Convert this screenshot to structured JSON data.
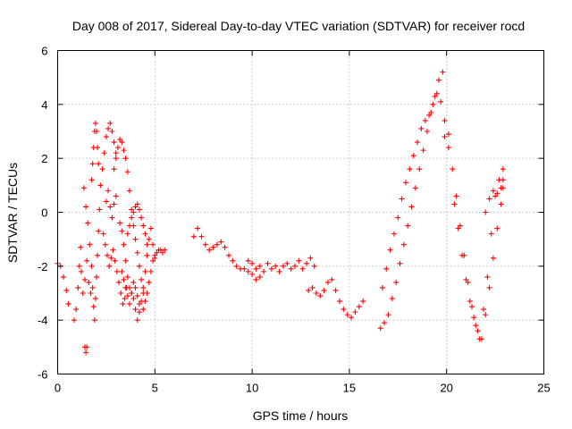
{
  "chart_data": {
    "type": "scatter",
    "title": "Day 008 of 2017, Sidereal Day-to-day VTEC variation (SDTVAR) for receiver rocd",
    "xlabel": "GPS time / hours",
    "ylabel": "SDTVAR / TECUs",
    "xlim": [
      0,
      25
    ],
    "ylim": [
      -6,
      6
    ],
    "xticks": [
      0,
      5,
      10,
      15,
      20,
      25
    ],
    "yticks": [
      -6,
      -4,
      -2,
      0,
      2,
      4,
      6
    ],
    "xtick_labels": [
      "0",
      "5",
      "10",
      "15",
      "20",
      "25"
    ],
    "ytick_labels": [
      "-6",
      "-4",
      "-2",
      "0",
      "2",
      "4",
      "6"
    ],
    "grid": true,
    "marker": "plus",
    "color": "#ff0000",
    "series": [
      {
        "name": "SDTVAR",
        "tracks": [
          {
            "x": [
              0.0,
              0.15,
              0.3,
              0.45,
              0.55
            ],
            "y": [
              -1.9,
              -2.0,
              -2.4,
              -2.9,
              -3.4
            ]
          },
          {
            "x": [
              0.85,
              0.95,
              1.05,
              1.12,
              1.18,
              1.22,
              1.3,
              1.4,
              1.5,
              1.6,
              1.7
            ],
            "y": [
              -4.0,
              -3.6,
              -2.8,
              -2.0,
              -1.3,
              -2.2,
              -3.0,
              -2.5,
              -1.8,
              -2.6,
              -3.0
            ]
          },
          {
            "x": [
              1.4,
              1.45,
              1.5
            ],
            "y": [
              -5.0,
              -5.2,
              -5.0
            ]
          },
          {
            "x": [
              1.35,
              1.45,
              1.55,
              1.65,
              1.75,
              1.8,
              1.85,
              1.9,
              1.95,
              2.0,
              2.05,
              2.1,
              2.15
            ],
            "y": [
              0.9,
              0.2,
              -0.4,
              -1.2,
              -2.0,
              -2.8,
              -3.5,
              -4.0,
              -3.2,
              -2.4,
              -1.6,
              -0.7,
              0.1
            ]
          },
          {
            "x": [
              1.75,
              1.8,
              1.85,
              1.9,
              1.95,
              2.0,
              2.05,
              2.1
            ],
            "y": [
              1.2,
              1.8,
              2.4,
              3.0,
              3.3,
              3.0,
              2.4,
              1.8
            ]
          },
          {
            "x": [
              2.2,
              2.3,
              2.4,
              2.5,
              2.6,
              2.7,
              2.8,
              2.9,
              3.0
            ],
            "y": [
              1.0,
              1.6,
              2.2,
              2.8,
              3.1,
              3.3,
              3.0,
              2.6,
              2.2
            ]
          },
          {
            "x": [
              2.35,
              2.45,
              2.55,
              2.65,
              2.75,
              2.85,
              2.95,
              3.05,
              3.15,
              3.25,
              3.35,
              3.45,
              3.55
            ],
            "y": [
              -0.8,
              -1.2,
              -1.6,
              -2.0,
              -1.7,
              -1.4,
              -1.8,
              -2.2,
              -2.6,
              -3.0,
              -3.4,
              -3.2,
              -2.8
            ]
          },
          {
            "x": [
              2.5,
              2.6,
              2.7,
              2.8,
              2.9,
              3.0
            ],
            "y": [
              0.4,
              0.8,
              0.2,
              -0.2,
              0.3,
              0.6
            ]
          },
          {
            "x": [
              2.9,
              3.0,
              3.1,
              3.2,
              3.3,
              3.4,
              3.5,
              3.6,
              3.7,
              3.8,
              3.9,
              4.0,
              4.1,
              4.2,
              4.3,
              4.4
            ],
            "y": [
              1.6,
              2.0,
              2.4,
              2.7,
              2.6,
              2.3,
              2.0,
              1.5,
              0.8,
              0.1,
              -0.5,
              -1.0,
              -1.5,
              -2.0,
              -2.5,
              -3.0
            ]
          },
          {
            "x": [
              3.2,
              3.3,
              3.4,
              3.5,
              3.6,
              3.7,
              3.8,
              3.9,
              4.0,
              4.1,
              4.2,
              4.3,
              4.4,
              4.5,
              4.6,
              4.7,
              4.8,
              4.9,
              5.0
            ],
            "y": [
              -0.4,
              -0.7,
              -1.2,
              -1.8,
              -2.4,
              -2.8,
              -3.0,
              -3.2,
              -3.6,
              -4.0,
              -3.7,
              -3.3,
              -2.8,
              -2.2,
              -1.6,
              -1.0,
              -0.6,
              -1.2,
              -1.7
            ]
          },
          {
            "x": [
              3.3,
              3.4,
              3.5,
              3.6,
              3.7,
              3.8,
              3.9,
              4.0,
              4.1,
              4.2
            ],
            "y": [
              -2.2,
              -2.5,
              -2.8,
              -3.1,
              -3.4,
              -3.0,
              -2.6,
              -2.8,
              -3.1,
              -3.4
            ]
          },
          {
            "x": [
              3.6,
              3.7,
              3.8,
              3.9,
              4.0,
              4.1,
              4.2,
              4.3,
              4.4,
              4.5,
              4.6
            ],
            "y": [
              -0.8,
              -0.5,
              -0.2,
              0.0,
              0.2,
              0.3,
              0.1,
              -0.2,
              -0.5,
              -0.8,
              -1.2
            ]
          },
          {
            "x": [
              4.4,
              4.5,
              4.6,
              4.7,
              4.8,
              4.9,
              5.0,
              5.1,
              5.2,
              5.3,
              5.4,
              5.5
            ],
            "y": [
              -3.6,
              -3.3,
              -3.0,
              -2.6,
              -2.2,
              -1.8,
              -1.6,
              -1.5,
              -1.4,
              -1.4,
              -1.5,
              -1.4
            ]
          },
          {
            "x": [
              7.0,
              7.2,
              7.4,
              7.6,
              7.8,
              8.0,
              8.2,
              8.4,
              8.6,
              8.8,
              9.0,
              9.2,
              9.4,
              9.6,
              9.8,
              10.0,
              10.2,
              10.4
            ],
            "y": [
              -0.9,
              -0.6,
              -0.9,
              -1.2,
              -1.4,
              -1.3,
              -1.2,
              -1.1,
              -1.3,
              -1.6,
              -1.8,
              -2.0,
              -2.1,
              -2.1,
              -2.2,
              -2.3,
              -2.5,
              -2.4
            ]
          },
          {
            "x": [
              9.8,
              10.0,
              10.2,
              10.4,
              10.6,
              10.8,
              11.0,
              11.2,
              11.4,
              11.6,
              11.8,
              12.0,
              12.2,
              12.4,
              12.6,
              12.8,
              13.0,
              13.2
            ],
            "y": [
              -1.8,
              -1.9,
              -2.1,
              -2.0,
              -2.2,
              -1.9,
              -2.1,
              -2.0,
              -2.2,
              -2.0,
              -1.9,
              -2.1,
              -2.0,
              -1.8,
              -2.1,
              -1.9,
              -1.7,
              -2.0
            ]
          },
          {
            "x": [
              12.9,
              13.1,
              13.3,
              13.5,
              13.7,
              13.9,
              14.1,
              14.3,
              14.5,
              14.7,
              14.9,
              15.1,
              15.3,
              15.5,
              15.7
            ],
            "y": [
              -2.9,
              -2.8,
              -3.0,
              -3.1,
              -2.9,
              -2.6,
              -2.5,
              -2.9,
              -3.3,
              -3.6,
              -3.8,
              -3.9,
              -3.7,
              -3.5,
              -3.3
            ]
          },
          {
            "x": [
              16.6,
              16.8,
              17.0,
              17.2,
              17.4,
              17.6,
              17.8,
              18.0,
              18.2,
              18.4,
              18.6,
              18.8,
              19.0,
              19.2,
              19.4,
              19.6,
              19.8
            ],
            "y": [
              -4.3,
              -4.1,
              -3.8,
              -3.2,
              -2.6,
              -1.9,
              -1.2,
              -0.5,
              0.2,
              0.9,
              1.6,
              2.3,
              3.0,
              3.7,
              4.3,
              4.9,
              5.2
            ]
          },
          {
            "x": [
              16.7,
              16.9,
              17.1,
              17.3,
              17.5,
              17.7,
              17.9,
              18.1,
              18.3,
              18.5,
              18.7,
              18.9,
              19.1,
              19.3,
              19.5,
              19.7,
              19.9,
              20.1
            ],
            "y": [
              -2.8,
              -2.1,
              -1.4,
              -0.8,
              -0.2,
              0.5,
              1.1,
              1.6,
              2.1,
              2.6,
              3.1,
              3.4,
              3.6,
              4.0,
              4.4,
              4.1,
              3.4,
              2.9
            ]
          },
          {
            "x": [
              19.9,
              20.1,
              20.3,
              20.5,
              20.7,
              20.9,
              21.1,
              21.3,
              21.5,
              21.7,
              21.9,
              22.1,
              22.3,
              22.5,
              22.7,
              22.9
            ],
            "y": [
              2.8,
              2.4,
              1.6,
              0.6,
              -0.5,
              -1.6,
              -2.6,
              -3.5,
              -4.2,
              -4.7,
              -3.6,
              -2.4,
              -0.8,
              0.6,
              1.2,
              1.6
            ]
          },
          {
            "x": [
              20.4,
              20.6,
              20.8,
              21.0,
              21.2,
              21.4,
              21.6,
              21.8,
              22.0,
              22.2,
              22.4,
              22.6,
              22.8,
              22.9
            ],
            "y": [
              0.3,
              -0.6,
              -1.6,
              -2.5,
              -3.3,
              -3.9,
              -4.4,
              -4.7,
              -3.8,
              -2.8,
              -1.7,
              -0.6,
              0.3,
              0.9
            ]
          },
          {
            "x": [
              22.0,
              22.2,
              22.4,
              22.6,
              22.8,
              22.9
            ],
            "y": [
              0.0,
              0.5,
              0.8,
              0.7,
              0.9,
              1.2
            ]
          }
        ]
      }
    ]
  }
}
